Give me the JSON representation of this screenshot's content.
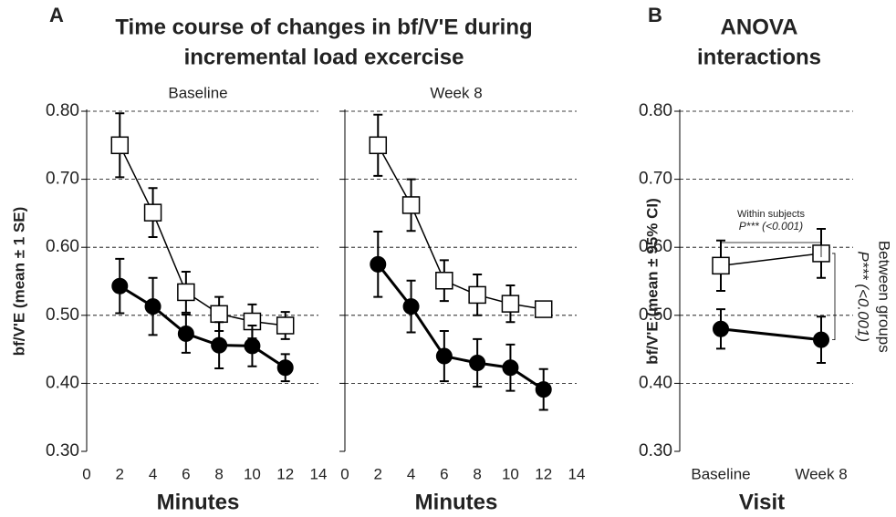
{
  "chart_data": [
    {
      "type": "line",
      "panel": "A",
      "title": [
        "Time course of changes in bf/V'E during",
        "incremental load excercise"
      ],
      "subtitle": "Baseline",
      "ylabel": "bf/V'E (mean ± 1 SE)",
      "xlabel": "Minutes",
      "x": [
        2,
        4,
        6,
        8,
        10,
        12
      ],
      "series": [
        {
          "color": "#000000",
          "marker": "square",
          "fill": "#ffffff",
          "line_width": 1.5,
          "values": [
            0.75,
            0.651,
            0.534,
            0.502,
            0.491,
            0.485
          ],
          "errors": [
            0.047,
            0.036,
            0.03,
            0.025,
            0.025,
            0.02
          ]
        },
        {
          "color": "#000000",
          "marker": "circle",
          "fill": "#000000",
          "line_width": 3,
          "values": [
            0.543,
            0.513,
            0.473,
            0.456,
            0.455,
            0.423
          ],
          "errors": [
            0.04,
            0.042,
            0.028,
            0.034,
            0.03,
            0.02
          ]
        }
      ],
      "xlim": [
        0,
        14
      ],
      "xticks": [
        0,
        2,
        4,
        6,
        8,
        10,
        12,
        14
      ],
      "ylim": [
        0.3,
        0.8
      ],
      "yticks": [
        {
          "value": 0.3,
          "label": "0.30"
        },
        {
          "value": 0.4,
          "label": "0.40"
        },
        {
          "value": 0.5,
          "label": "0.50"
        },
        {
          "value": 0.6,
          "label": "0.60"
        },
        {
          "value": 0.7,
          "label": "0.70"
        },
        {
          "value": 0.8,
          "label": "0.80"
        }
      ],
      "grid": true
    },
    {
      "type": "line",
      "subtitle": "Week 8",
      "xlabel": "Minutes",
      "x": [
        2,
        4,
        6,
        8,
        10,
        12
      ],
      "series": [
        {
          "color": "#000000",
          "marker": "square",
          "fill": "#ffffff",
          "line_width": 1.5,
          "values": [
            0.75,
            0.662,
            0.551,
            0.53,
            0.517,
            0.509
          ],
          "errors": [
            0.045,
            0.038,
            0.03,
            0.03,
            0.027,
            null
          ]
        },
        {
          "color": "#000000",
          "marker": "circle",
          "fill": "#000000",
          "line_width": 3,
          "values": [
            0.575,
            0.513,
            0.44,
            0.43,
            0.423,
            0.391
          ],
          "errors": [
            0.048,
            0.038,
            0.037,
            0.035,
            0.034,
            0.03
          ]
        }
      ],
      "xlim": [
        0,
        14
      ],
      "xticks": [
        0,
        2,
        4,
        6,
        8,
        10,
        12,
        14
      ],
      "ylim": [
        0.3,
        0.8
      ],
      "yticks": [
        {
          "value": 0.3,
          "label": "0.30"
        },
        {
          "value": 0.4,
          "label": "0.40"
        },
        {
          "value": 0.5,
          "label": "0.50"
        },
        {
          "value": 0.6,
          "label": "0.60"
        },
        {
          "value": 0.7,
          "label": "0.70"
        },
        {
          "value": 0.8,
          "label": "0.80"
        }
      ],
      "grid": true
    },
    {
      "type": "line",
      "panel": "B",
      "title": [
        "ANOVA",
        "interactions"
      ],
      "ylabel": "bf/V'E (mean ± 95% CI)",
      "xlabel": "Visit",
      "categories": [
        "Baseline",
        "Week 8"
      ],
      "series": [
        {
          "color": "#000000",
          "marker": "square",
          "fill": "#ffffff",
          "line_width": 1.5,
          "values": [
            0.573,
            0.591
          ],
          "errors": [
            0.037,
            0.036
          ]
        },
        {
          "color": "#000000",
          "marker": "circle",
          "fill": "#000000",
          "line_width": 3,
          "values": [
            0.48,
            0.464
          ],
          "errors": [
            0.029,
            0.034
          ]
        }
      ],
      "ylim": [
        0.3,
        0.8
      ],
      "yticks": [
        {
          "value": 0.3,
          "label": "0.30"
        },
        {
          "value": 0.4,
          "label": "0.40"
        },
        {
          "value": 0.5,
          "label": "0.50"
        },
        {
          "value": 0.6,
          "label": "0.60"
        },
        {
          "value": 0.7,
          "label": "0.70"
        },
        {
          "value": 0.8,
          "label": "0.80"
        }
      ],
      "grid": true,
      "annotations": [
        "Within subjects",
        "P*** (<0.001)",
        "Between groups",
        "P*** (<0.001)"
      ]
    }
  ]
}
